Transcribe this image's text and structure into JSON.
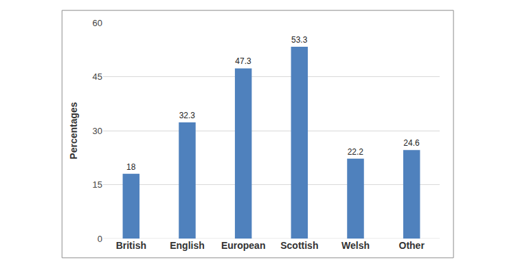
{
  "chart_data": {
    "type": "bar",
    "y_label": "Percentages",
    "categories": [
      "British",
      "English",
      "European",
      "Scottish",
      "Welsh",
      "Other"
    ],
    "values": [
      18,
      32.3,
      47.3,
      53.3,
      22.2,
      24.6
    ],
    "color": "#4f81bd",
    "ylim": [
      0,
      60
    ],
    "yticks": [
      0,
      15,
      30,
      45,
      60
    ],
    "grid": true,
    "data_labels": true
  }
}
